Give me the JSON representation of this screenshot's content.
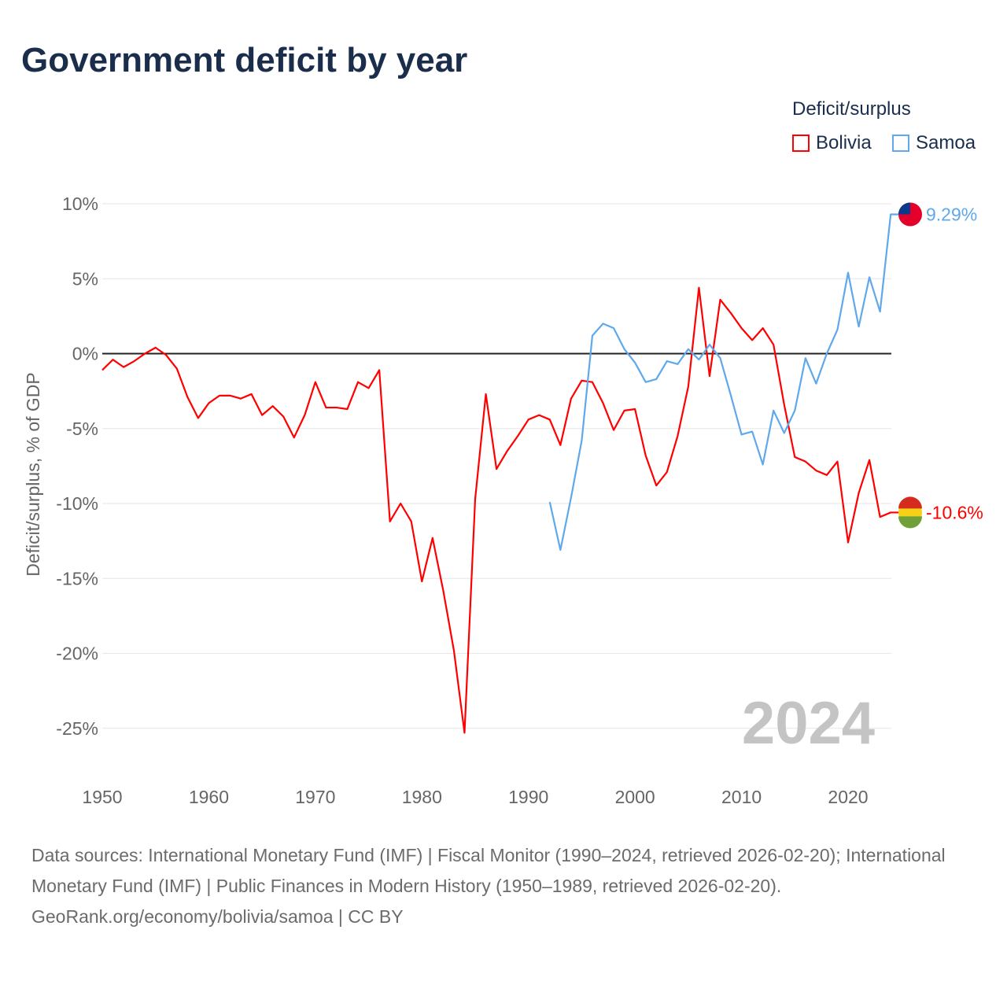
{
  "title": "Government deficit by year",
  "legend": {
    "title": "Deficit/surplus",
    "items": [
      "Bolivia",
      "Samoa"
    ]
  },
  "watermark_year": "2024",
  "footer": {
    "line1": "Data sources: International Monetary Fund (IMF) | Fiscal Monitor (1990–2024, retrieved 2026-02-20); International Monetary Fund (IMF) | Public Finances in Modern History (1950–1989, retrieved 2026-02-20).",
    "line2": "GeoRank.org/economy/bolivia/samoa | CC BY"
  },
  "chart_data": {
    "type": "line",
    "title": "Government deficit by year",
    "ylabel": "Deficit/surplus, % of GDP",
    "xlabel": "",
    "xlim": [
      1950,
      2024
    ],
    "ylim": [
      -27,
      11
    ],
    "yticks": [
      10,
      5,
      0,
      -5,
      -10,
      -15,
      -20,
      -25
    ],
    "ytick_labels": [
      "10%",
      "5%",
      "0%",
      "-5%",
      "-10%",
      "-15%",
      "-20%",
      "-25%"
    ],
    "xticks": [
      1950,
      1960,
      1970,
      1980,
      1990,
      2000,
      2010,
      2020
    ],
    "xtick_labels": [
      "1950",
      "1960",
      "1970",
      "1980",
      "1990",
      "2000",
      "2010",
      "2020"
    ],
    "series": [
      {
        "name": "Bolivia",
        "color": "#ff0000",
        "end_label": "-10.6%",
        "start": 1950,
        "values": [
          -1.1,
          -0.4,
          -0.9,
          -0.5,
          0,
          0.4,
          -0.1,
          -1.0,
          -2.9,
          -4.3,
          -3.3,
          -2.8,
          -2.8,
          -3.0,
          -2.7,
          -4.1,
          -3.5,
          -4.2,
          -5.6,
          -4.1,
          -1.9,
          -3.6,
          -3.6,
          -3.7,
          -1.9,
          -2.3,
          -1.1,
          -11.2,
          -10.0,
          -11.2,
          -15.2,
          -12.3,
          -15.8,
          -19.8,
          -25.3,
          -9.7,
          -2.7,
          -7.7,
          -6.5,
          -5.5,
          -4.4,
          -4.1,
          -4.4,
          -6.1,
          -3.0,
          -1.8,
          -1.9,
          -3.3,
          -5.1,
          -3.8,
          -3.7,
          -6.8,
          -8.8,
          -7.9,
          -5.5,
          -2.2,
          4.4,
          -1.5,
          3.6,
          2.7,
          1.7,
          0.9,
          1.7,
          0.6,
          -3.4,
          -6.9,
          -7.2,
          -7.8,
          -8.1,
          -7.2,
          -12.6,
          -9.3,
          -7.1,
          -10.9,
          -10.6
        ]
      },
      {
        "name": "Samoa",
        "color": "#5fa8ec",
        "end_label": "9.29%",
        "start": 1992,
        "values": [
          -9.9,
          -13.1,
          -9.6,
          -5.8,
          1.2,
          2.0,
          1.7,
          0.3,
          -0.6,
          -1.9,
          -1.7,
          -0.5,
          -0.7,
          0.3,
          -0.4,
          0.6,
          -0.3,
          -2.8,
          -5.4,
          -5.2,
          -7.4,
          -3.8,
          -5.3,
          -3.8,
          -0.3,
          -2.0,
          0.0,
          1.6,
          5.4,
          1.8,
          5.1,
          2.8,
          9.29
        ]
      }
    ],
    "grid": true,
    "legend_position": "top-right"
  }
}
